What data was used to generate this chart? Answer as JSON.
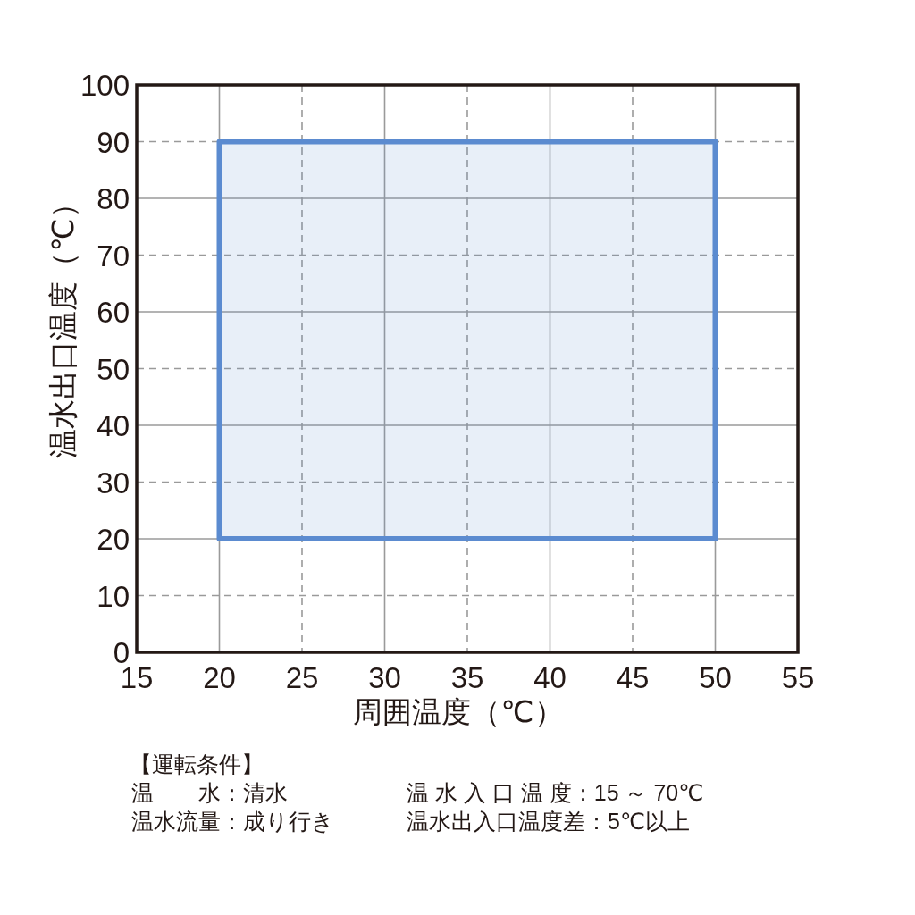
{
  "chart_data": {
    "type": "histogram",
    "xlabel": "周囲温度（℃）",
    "ylabel": "温水出口温度（℃）",
    "xlim": [
      15,
      55
    ],
    "ylim": [
      0,
      100
    ],
    "xticks": [
      15,
      20,
      25,
      30,
      35,
      40,
      45,
      50,
      55
    ],
    "yticks": [
      0,
      10,
      20,
      30,
      40,
      50,
      60,
      70,
      80,
      90,
      100
    ],
    "grid": true,
    "bins": [
      20,
      50
    ],
    "values": [
      70
    ],
    "base": [
      20
    ],
    "color": "#5b8bd0",
    "annotations": [
      "【運転条件】",
      "温　　水：清水",
      "温 水 入 口 温 度：15 ～ 70℃",
      "温水流量：成り行き",
      "温水出入口温度差：5℃以上"
    ]
  }
}
